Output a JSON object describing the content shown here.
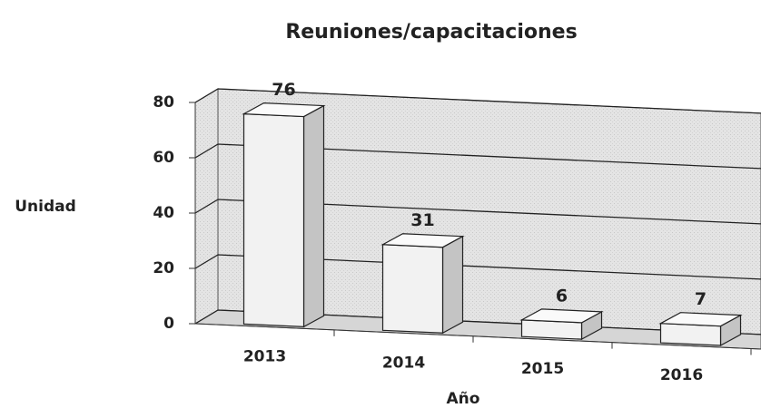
{
  "chart_data": {
    "type": "bar3d",
    "title": "Reuniones/capacitaciones",
    "y_label": "Unidad",
    "x_label": "Año",
    "categories": [
      "2013",
      "2014",
      "2015",
      "2016"
    ],
    "values": [
      76,
      31,
      6,
      7
    ],
    "color": "#f2f2f2",
    "ylim": [
      0,
      80
    ],
    "yticks": [
      0,
      20,
      40,
      60,
      80
    ],
    "grid": true
  }
}
